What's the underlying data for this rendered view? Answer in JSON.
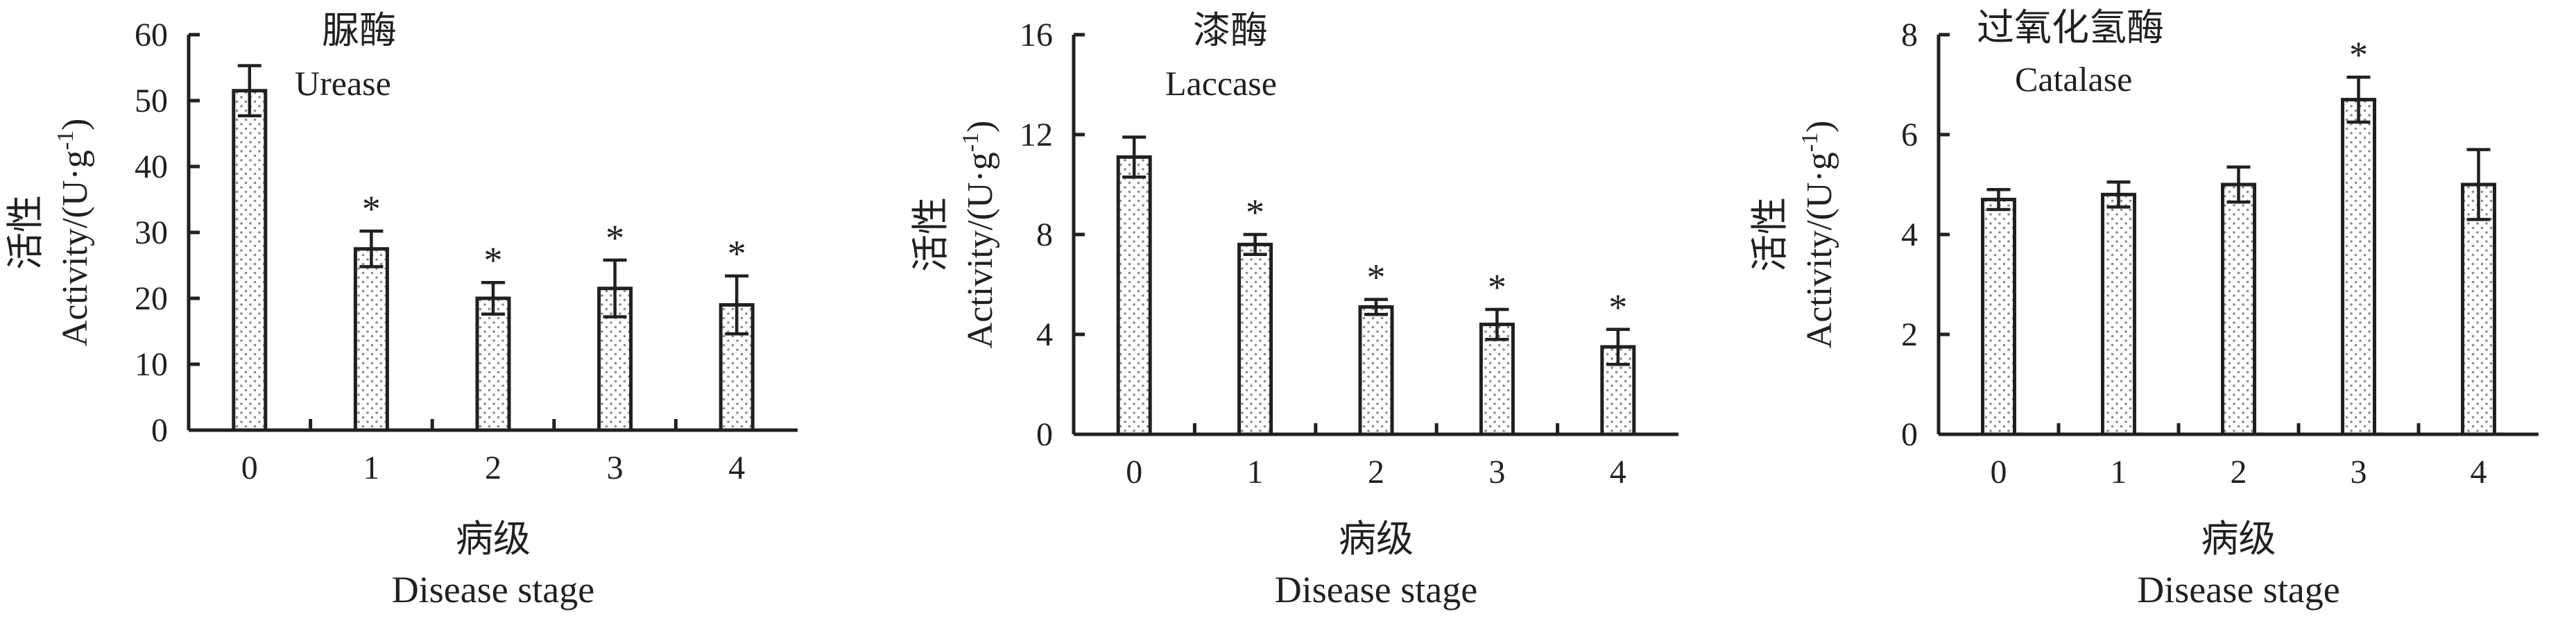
{
  "figure": {
    "x_label_cn": "病级",
    "x_label_en": "Disease stage",
    "y_label_cn": "活性",
    "y_label_en_prefix": "Activity/(U·g",
    "y_label_en_exp": "-1",
    "y_label_en_suffix": ")",
    "significance_marker": "*",
    "colors": {
      "ink": "#231f20",
      "bar_fill": "#ffffff",
      "bar_dots": "#8a8a8a"
    }
  },
  "chart_data": [
    {
      "type": "bar",
      "title_cn": "脲酶",
      "title_en": "Urease",
      "categories": [
        "0",
        "1",
        "2",
        "3",
        "4"
      ],
      "values": [
        51.5,
        27.5,
        20.0,
        21.5,
        19.0
      ],
      "errors": [
        3.8,
        2.7,
        2.4,
        4.3,
        4.4
      ],
      "significant": [
        false,
        true,
        true,
        true,
        true
      ],
      "ylim": [
        0,
        60
      ],
      "yticks": [
        0,
        10,
        20,
        30,
        40,
        50,
        60
      ],
      "xlabel": "病级 Disease stage",
      "ylabel": "活性 Activity/(U·g-1)"
    },
    {
      "type": "bar",
      "title_cn": "漆酶",
      "title_en": "Laccase",
      "categories": [
        "0",
        "1",
        "2",
        "3",
        "4"
      ],
      "values": [
        11.1,
        7.6,
        5.1,
        4.4,
        3.5
      ],
      "errors": [
        0.8,
        0.4,
        0.3,
        0.6,
        0.7
      ],
      "significant": [
        false,
        true,
        true,
        true,
        true
      ],
      "ylim": [
        0,
        16
      ],
      "yticks": [
        0,
        4,
        8,
        12,
        16
      ],
      "xlabel": "病级 Disease stage",
      "ylabel": "活性 Activity/(U·g-1)"
    },
    {
      "type": "bar",
      "title_cn": "过氧化氢酶",
      "title_en": "Catalase",
      "categories": [
        "0",
        "1",
        "2",
        "3",
        "4"
      ],
      "values": [
        4.7,
        4.8,
        5.0,
        6.7,
        5.0
      ],
      "errors": [
        0.2,
        0.25,
        0.35,
        0.45,
        0.7
      ],
      "significant": [
        false,
        false,
        false,
        true,
        false
      ],
      "ylim": [
        0,
        8
      ],
      "yticks": [
        0,
        2,
        4,
        6,
        8
      ],
      "xlabel": "病级 Disease stage",
      "ylabel": "活性 Activity/(U·g-1)"
    }
  ]
}
